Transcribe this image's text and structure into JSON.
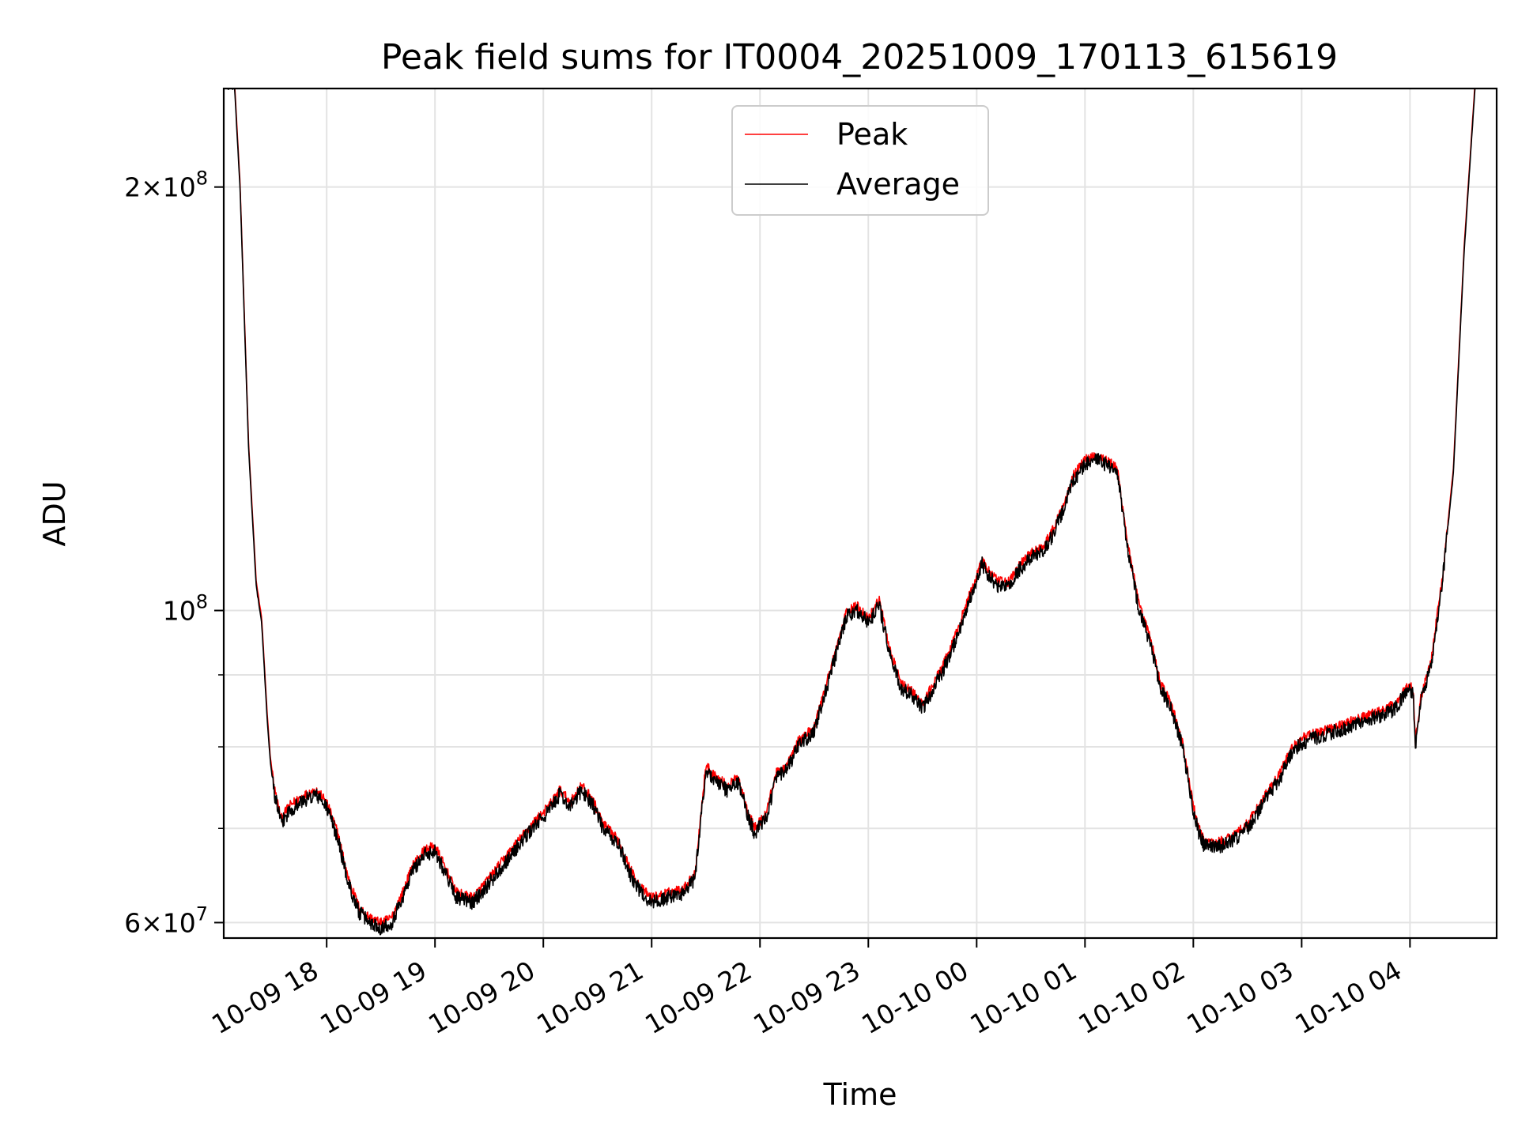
{
  "chart_data": {
    "type": "line",
    "title": "Peak field sums for IT0004_20251009_170113_615619",
    "xlabel": "Time",
    "ylabel": "ADU",
    "yscale": "log",
    "ylim": [
      58500000,
      235000000
    ],
    "xlim": [
      17.05,
      28.8
    ],
    "x_unit": "hours since 10-09 00:00",
    "grid": true,
    "legend_position": "top-center",
    "x_ticks": [
      {
        "value": 18,
        "label": "10-09 18"
      },
      {
        "value": 19,
        "label": "10-09 19"
      },
      {
        "value": 20,
        "label": "10-09 20"
      },
      {
        "value": 21,
        "label": "10-09 21"
      },
      {
        "value": 22,
        "label": "10-09 22"
      },
      {
        "value": 23,
        "label": "10-09 23"
      },
      {
        "value": 24,
        "label": "10-10 00"
      },
      {
        "value": 25,
        "label": "10-10 01"
      },
      {
        "value": 26,
        "label": "10-10 02"
      },
      {
        "value": 27,
        "label": "10-10 03"
      },
      {
        "value": 28,
        "label": "10-10 04"
      }
    ],
    "y_ticks": [
      {
        "value": 60000000,
        "mantissa": "6",
        "exponent": "7"
      },
      {
        "value": 100000000,
        "mantissa": "",
        "exponent": "8"
      },
      {
        "value": 200000000,
        "mantissa": "2",
        "exponent": "8"
      }
    ],
    "y_minor_gridlines": [
      70000000,
      80000000,
      90000000
    ],
    "series": [
      {
        "name": "Peak",
        "color": "#ff0000",
        "offset_fraction": 0.008,
        "noise": 0.008
      },
      {
        "name": "Average",
        "color": "#000000",
        "offset_fraction": 0.0,
        "noise": 0.012
      }
    ],
    "x": [
      17.07,
      17.15,
      17.2,
      17.28,
      17.35,
      17.4,
      17.45,
      17.48,
      17.52,
      17.58,
      17.65,
      17.75,
      17.9,
      18.0,
      18.1,
      18.2,
      18.3,
      18.4,
      18.5,
      18.6,
      18.7,
      18.8,
      18.9,
      19.0,
      19.1,
      19.2,
      19.35,
      19.5,
      19.7,
      19.9,
      20.05,
      20.15,
      20.25,
      20.35,
      20.45,
      20.55,
      20.7,
      20.8,
      20.9,
      21.0,
      21.15,
      21.3,
      21.4,
      21.5,
      21.6,
      21.7,
      21.8,
      21.9,
      21.95,
      22.05,
      22.15,
      22.25,
      22.35,
      22.5,
      22.7,
      22.8,
      22.9,
      23.0,
      23.1,
      23.2,
      23.3,
      23.4,
      23.5,
      23.6,
      23.7,
      23.8,
      23.9,
      24.0,
      24.05,
      24.1,
      24.2,
      24.3,
      24.4,
      24.5,
      24.6,
      24.7,
      24.8,
      24.9,
      25.0,
      25.1,
      25.2,
      25.3,
      25.4,
      25.5,
      25.6,
      25.7,
      25.8,
      25.9,
      26.0,
      26.05,
      26.1,
      26.15,
      26.2,
      26.3,
      26.4,
      26.5,
      26.6,
      26.7,
      26.8,
      26.9,
      27.0,
      27.1,
      27.3,
      27.5,
      27.7,
      27.85,
      28.0,
      28.03,
      28.05,
      28.1,
      28.2,
      28.3,
      28.4,
      28.5,
      28.6
    ],
    "values": [
      235000000,
      235000000,
      200000000,
      130000000,
      104000000,
      98000000,
      84000000,
      78000000,
      74000000,
      70500000,
      72000000,
      73000000,
      74000000,
      72500000,
      69000000,
      64000000,
      61000000,
      60000000,
      59500000,
      60000000,
      62500000,
      65500000,
      67000000,
      67500000,
      65000000,
      62500000,
      62000000,
      64000000,
      67000000,
      70000000,
      72000000,
      74000000,
      72500000,
      74500000,
      73000000,
      70000000,
      68000000,
      65000000,
      63000000,
      62000000,
      62500000,
      63000000,
      64500000,
      77000000,
      75500000,
      74500000,
      75500000,
      71000000,
      69500000,
      71000000,
      76000000,
      77000000,
      80000000,
      82000000,
      93000000,
      99000000,
      100000000,
      98000000,
      101000000,
      93000000,
      88000000,
      87000000,
      85000000,
      88000000,
      91000000,
      95000000,
      100000000,
      105000000,
      108000000,
      106000000,
      104000000,
      104000000,
      107000000,
      109000000,
      110000000,
      113000000,
      118000000,
      124000000,
      127000000,
      128000000,
      127000000,
      125000000,
      110000000,
      100000000,
      95000000,
      88000000,
      85000000,
      80000000,
      72000000,
      69500000,
      68000000,
      68000000,
      67800000,
      68200000,
      69000000,
      70000000,
      72000000,
      74000000,
      76000000,
      79000000,
      80500000,
      81000000,
      82000000,
      83000000,
      84000000,
      85000000,
      88000000,
      87000000,
      80000000,
      86000000,
      92000000,
      105000000,
      125000000,
      180000000,
      235000000
    ]
  }
}
